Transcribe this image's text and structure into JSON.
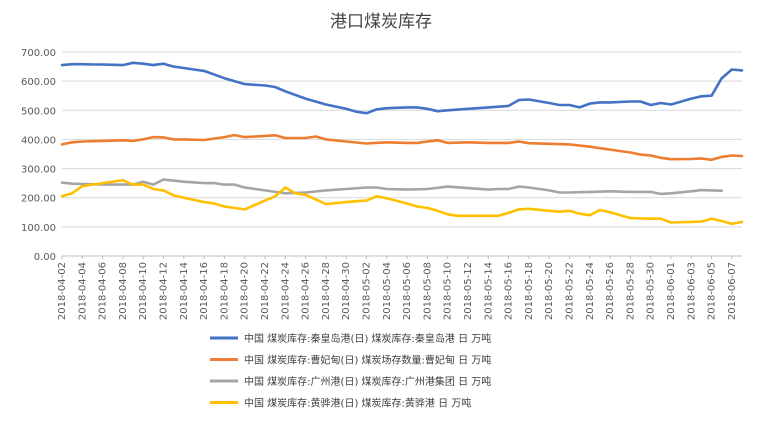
{
  "chart_data": {
    "type": "line",
    "title": "港口煤炭库存",
    "xlabel": "",
    "ylabel": "",
    "ylim": [
      0,
      700
    ],
    "yticks": [
      "0.00",
      "100.00",
      "200.00",
      "300.00",
      "400.00",
      "500.00",
      "600.00",
      "700.00"
    ],
    "grid": true,
    "legend_position": "bottom",
    "x_start": "2018-04-02",
    "x_end": "2018-06-08",
    "x_tick_labels": [
      "2018-04-02",
      "2018-04-04",
      "2018-04-06",
      "2018-04-08",
      "2018-04-10",
      "2018-04-12",
      "2018-04-14",
      "2018-04-16",
      "2018-04-18",
      "2018-04-20",
      "2018-04-22",
      "2018-04-24",
      "2018-04-26",
      "2018-04-28",
      "2018-04-30",
      "2018-05-02",
      "2018-05-04",
      "2018-05-06",
      "2018-05-08",
      "2018-05-10",
      "2018-05-12",
      "2018-05-14",
      "2018-05-16",
      "2018-05-18",
      "2018-05-20",
      "2018-05-22",
      "2018-05-24",
      "2018-05-26",
      "2018-05-28",
      "2018-05-30",
      "2018-06-01",
      "2018-06-03",
      "2018-06-05",
      "2018-06-07"
    ],
    "series": [
      {
        "name": "中国 煤炭库存:秦皇岛港(日) 煤炭库存:秦皇岛港 日 万吨",
        "color": "#4472c4",
        "points": [
          [
            "2018-04-02",
            655
          ],
          [
            "2018-04-03",
            658
          ],
          [
            "2018-04-04",
            658
          ],
          [
            "2018-04-05",
            657
          ],
          [
            "2018-04-06",
            657
          ],
          [
            "2018-04-07",
            656
          ],
          [
            "2018-04-08",
            655
          ],
          [
            "2018-04-09",
            663
          ],
          [
            "2018-04-10",
            660
          ],
          [
            "2018-04-11",
            655
          ],
          [
            "2018-04-12",
            660
          ],
          [
            "2018-04-13",
            650
          ],
          [
            "2018-04-14",
            645
          ],
          [
            "2018-04-15",
            640
          ],
          [
            "2018-04-16",
            635
          ],
          [
            "2018-04-18",
            610
          ],
          [
            "2018-04-20",
            590
          ],
          [
            "2018-04-22",
            585
          ],
          [
            "2018-04-23",
            580
          ],
          [
            "2018-04-24",
            565
          ],
          [
            "2018-04-26",
            540
          ],
          [
            "2018-04-28",
            520
          ],
          [
            "2018-04-30",
            505
          ],
          [
            "2018-05-01",
            495
          ],
          [
            "2018-05-02",
            490
          ],
          [
            "2018-05-03",
            503
          ],
          [
            "2018-05-04",
            507
          ],
          [
            "2018-05-06",
            510
          ],
          [
            "2018-05-07",
            510
          ],
          [
            "2018-05-08",
            505
          ],
          [
            "2018-05-09",
            497
          ],
          [
            "2018-05-10",
            500
          ],
          [
            "2018-05-12",
            505
          ],
          [
            "2018-05-14",
            510
          ],
          [
            "2018-05-16",
            515
          ],
          [
            "2018-05-17",
            535
          ],
          [
            "2018-05-18",
            537
          ],
          [
            "2018-05-20",
            525
          ],
          [
            "2018-05-21",
            518
          ],
          [
            "2018-05-22",
            518
          ],
          [
            "2018-05-23",
            510
          ],
          [
            "2018-05-24",
            523
          ],
          [
            "2018-05-25",
            527
          ],
          [
            "2018-05-26",
            527
          ],
          [
            "2018-05-28",
            530
          ],
          [
            "2018-05-29",
            530
          ],
          [
            "2018-05-30",
            518
          ],
          [
            "2018-05-31",
            525
          ],
          [
            "2018-06-01",
            520
          ],
          [
            "2018-06-03",
            540
          ],
          [
            "2018-06-04",
            548
          ],
          [
            "2018-06-05",
            550
          ],
          [
            "2018-06-06",
            610
          ],
          [
            "2018-06-07",
            640
          ],
          [
            "2018-06-08",
            637
          ]
        ]
      },
      {
        "name": "中国 煤炭库存:曹妃甸(日) 煤炭场存数量:曹妃甸 日 万吨",
        "color": "#ed7d31",
        "points": [
          [
            "2018-04-02",
            383
          ],
          [
            "2018-04-03",
            390
          ],
          [
            "2018-04-04",
            393
          ],
          [
            "2018-04-06",
            395
          ],
          [
            "2018-04-08",
            397
          ],
          [
            "2018-04-09",
            395
          ],
          [
            "2018-04-10",
            400
          ],
          [
            "2018-04-11",
            408
          ],
          [
            "2018-04-12",
            407
          ],
          [
            "2018-04-13",
            400
          ],
          [
            "2018-04-14",
            400
          ],
          [
            "2018-04-16",
            398
          ],
          [
            "2018-04-18",
            408
          ],
          [
            "2018-04-19",
            415
          ],
          [
            "2018-04-20",
            408
          ],
          [
            "2018-04-22",
            412
          ],
          [
            "2018-04-23",
            414
          ],
          [
            "2018-04-24",
            405
          ],
          [
            "2018-04-26",
            405
          ],
          [
            "2018-04-27",
            410
          ],
          [
            "2018-04-28",
            400
          ],
          [
            "2018-04-30",
            393
          ],
          [
            "2018-05-02",
            386
          ],
          [
            "2018-05-04",
            390
          ],
          [
            "2018-05-06",
            388
          ],
          [
            "2018-05-07",
            388
          ],
          [
            "2018-05-08",
            393
          ],
          [
            "2018-05-09",
            397
          ],
          [
            "2018-05-10",
            388
          ],
          [
            "2018-05-12",
            390
          ],
          [
            "2018-05-14",
            388
          ],
          [
            "2018-05-16",
            388
          ],
          [
            "2018-05-17",
            393
          ],
          [
            "2018-05-18",
            387
          ],
          [
            "2018-05-20",
            385
          ],
          [
            "2018-05-22",
            383
          ],
          [
            "2018-05-24",
            375
          ],
          [
            "2018-05-26",
            365
          ],
          [
            "2018-05-28",
            355
          ],
          [
            "2018-05-29",
            348
          ],
          [
            "2018-05-30",
            345
          ],
          [
            "2018-05-31",
            337
          ],
          [
            "2018-06-01",
            332
          ],
          [
            "2018-06-03",
            333
          ],
          [
            "2018-06-04",
            335
          ],
          [
            "2018-06-05",
            330
          ],
          [
            "2018-06-06",
            340
          ],
          [
            "2018-06-07",
            345
          ],
          [
            "2018-06-08",
            343
          ]
        ]
      },
      {
        "name": "中国 煤炭库存:广州港(日) 煤炭库存:广州港集团 日 万吨",
        "color": "#a5a5a5",
        "points": [
          [
            "2018-04-02",
            252
          ],
          [
            "2018-04-03",
            248
          ],
          [
            "2018-04-04",
            247
          ],
          [
            "2018-04-06",
            245
          ],
          [
            "2018-04-08",
            245
          ],
          [
            "2018-04-09",
            245
          ],
          [
            "2018-04-10",
            255
          ],
          [
            "2018-04-11",
            245
          ],
          [
            "2018-04-12",
            262
          ],
          [
            "2018-04-14",
            255
          ],
          [
            "2018-04-16",
            250
          ],
          [
            "2018-04-17",
            250
          ],
          [
            "2018-04-18",
            245
          ],
          [
            "2018-04-19",
            245
          ],
          [
            "2018-04-20",
            235
          ],
          [
            "2018-04-22",
            225
          ],
          [
            "2018-04-24",
            215
          ],
          [
            "2018-04-26",
            218
          ],
          [
            "2018-04-28",
            225
          ],
          [
            "2018-04-30",
            230
          ],
          [
            "2018-05-02",
            235
          ],
          [
            "2018-05-03",
            235
          ],
          [
            "2018-05-04",
            230
          ],
          [
            "2018-05-06",
            228
          ],
          [
            "2018-05-08",
            230
          ],
          [
            "2018-05-10",
            238
          ],
          [
            "2018-05-12",
            233
          ],
          [
            "2018-05-14",
            228
          ],
          [
            "2018-05-15",
            230
          ],
          [
            "2018-05-16",
            230
          ],
          [
            "2018-05-17",
            238
          ],
          [
            "2018-05-18",
            235
          ],
          [
            "2018-05-20",
            225
          ],
          [
            "2018-05-21",
            218
          ],
          [
            "2018-05-22",
            218
          ],
          [
            "2018-05-24",
            220
          ],
          [
            "2018-05-26",
            222
          ],
          [
            "2018-05-28",
            220
          ],
          [
            "2018-05-30",
            220
          ],
          [
            "2018-05-31",
            213
          ],
          [
            "2018-06-01",
            215
          ],
          [
            "2018-06-03",
            222
          ],
          [
            "2018-06-04",
            226
          ],
          [
            "2018-06-05",
            225
          ],
          [
            "2018-06-06",
            224
          ]
        ]
      },
      {
        "name": "中国 煤炭库存:黄骅港(日) 煤炭库存:黄骅港 日 万吨",
        "color": "#ffc000",
        "points": [
          [
            "2018-04-02",
            205
          ],
          [
            "2018-04-03",
            215
          ],
          [
            "2018-04-04",
            240
          ],
          [
            "2018-04-05",
            245
          ],
          [
            "2018-04-06",
            250
          ],
          [
            "2018-04-07",
            255
          ],
          [
            "2018-04-08",
            260
          ],
          [
            "2018-04-09",
            245
          ],
          [
            "2018-04-10",
            245
          ],
          [
            "2018-04-11",
            230
          ],
          [
            "2018-04-12",
            225
          ],
          [
            "2018-04-13",
            208
          ],
          [
            "2018-04-14",
            200
          ],
          [
            "2018-04-16",
            185
          ],
          [
            "2018-04-17",
            180
          ],
          [
            "2018-04-18",
            170
          ],
          [
            "2018-04-20",
            160
          ],
          [
            "2018-04-21",
            175
          ],
          [
            "2018-04-22",
            190
          ],
          [
            "2018-04-23",
            205
          ],
          [
            "2018-04-24",
            235
          ],
          [
            "2018-04-25",
            215
          ],
          [
            "2018-04-26",
            210
          ],
          [
            "2018-04-28",
            178
          ],
          [
            "2018-04-30",
            185
          ],
          [
            "2018-05-01",
            188
          ],
          [
            "2018-05-02",
            190
          ],
          [
            "2018-05-03",
            205
          ],
          [
            "2018-05-04",
            198
          ],
          [
            "2018-05-06",
            180
          ],
          [
            "2018-05-07",
            170
          ],
          [
            "2018-05-08",
            165
          ],
          [
            "2018-05-09",
            155
          ],
          [
            "2018-05-10",
            143
          ],
          [
            "2018-05-11",
            138
          ],
          [
            "2018-05-12",
            138
          ],
          [
            "2018-05-14",
            138
          ],
          [
            "2018-05-15",
            138
          ],
          [
            "2018-05-16",
            148
          ],
          [
            "2018-05-17",
            160
          ],
          [
            "2018-05-18",
            162
          ],
          [
            "2018-05-20",
            155
          ],
          [
            "2018-05-21",
            152
          ],
          [
            "2018-05-22",
            155
          ],
          [
            "2018-05-23",
            145
          ],
          [
            "2018-05-24",
            140
          ],
          [
            "2018-05-25",
            158
          ],
          [
            "2018-05-26",
            150
          ],
          [
            "2018-05-28",
            130
          ],
          [
            "2018-05-30",
            128
          ],
          [
            "2018-05-31",
            128
          ],
          [
            "2018-06-01",
            115
          ],
          [
            "2018-06-03",
            117
          ],
          [
            "2018-06-04",
            118
          ],
          [
            "2018-06-05",
            128
          ],
          [
            "2018-06-06",
            120
          ],
          [
            "2018-06-07",
            110
          ],
          [
            "2018-06-08",
            117
          ]
        ]
      }
    ]
  }
}
